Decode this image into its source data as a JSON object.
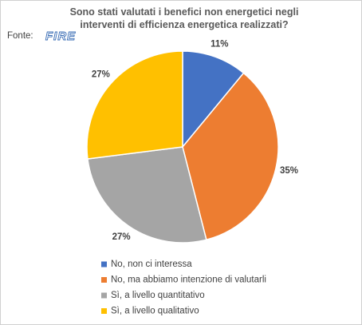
{
  "chart_data": {
    "type": "pie",
    "title": "Sono stati valutati i benefici non energetici negli interventi di efficienza energetica realizzati?",
    "source": "Fonte:",
    "source_logo": "FIRE",
    "categories": [
      "No, non ci interessa",
      "No, ma abbiamo intenzione di valutarli",
      "Sì, a livello quantitativo",
      "Sì, a livello qualitativo"
    ],
    "values": [
      11,
      35,
      27,
      27
    ],
    "value_labels": [
      "11%",
      "35%",
      "27%",
      "27%"
    ],
    "colors": [
      "#4472c4",
      "#ed7d31",
      "#a5a5a5",
      "#ffc000"
    ],
    "legend": "bottom"
  }
}
